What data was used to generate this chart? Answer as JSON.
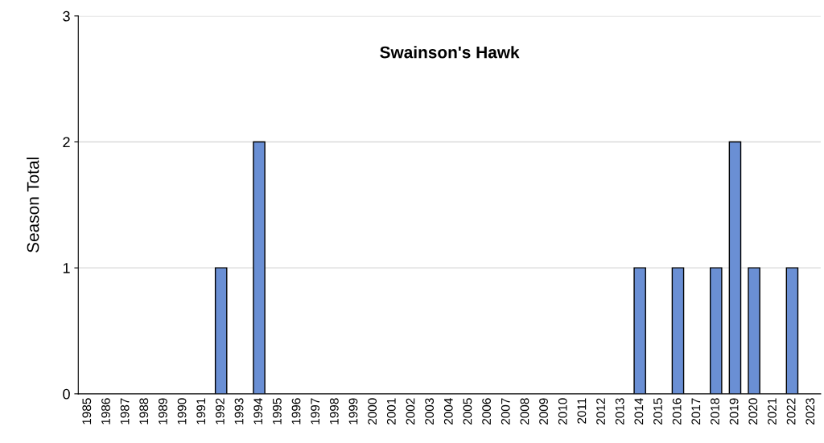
{
  "chart_data": {
    "type": "bar",
    "title": "Swainson's Hawk",
    "ylabel": "Season Total",
    "categories": [
      "1985",
      "1986",
      "1987",
      "1988",
      "1989",
      "1990",
      "1991",
      "1992",
      "1993",
      "1994",
      "1995",
      "1996",
      "1997",
      "1998",
      "1999",
      "2000",
      "2001",
      "2002",
      "2003",
      "2004",
      "2005",
      "2006",
      "2007",
      "2008",
      "2009",
      "2010",
      "2011",
      "2012",
      "2013",
      "2014",
      "2015",
      "2016",
      "2017",
      "2018",
      "2019",
      "2020",
      "2021",
      "2022",
      "2023"
    ],
    "values": [
      0,
      0,
      0,
      0,
      0,
      0,
      0,
      1,
      0,
      2,
      0,
      0,
      0,
      0,
      0,
      0,
      0,
      0,
      0,
      0,
      0,
      0,
      0,
      0,
      0,
      0,
      0,
      0,
      0,
      1,
      0,
      1,
      0,
      1,
      2,
      1,
      0,
      1,
      0
    ],
    "color": "#6a8fd4",
    "ylim": [
      0,
      3
    ],
    "yticks": [
      0,
      1,
      2,
      3
    ],
    "grid": "y"
  }
}
